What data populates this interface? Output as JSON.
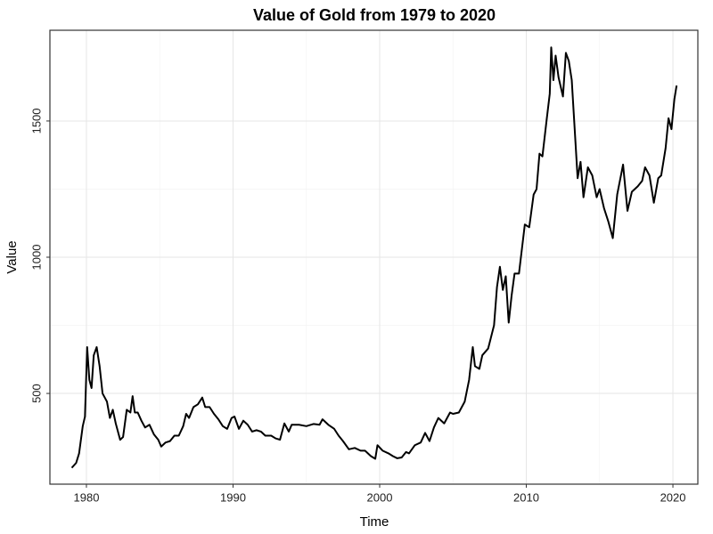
{
  "chart_data": {
    "type": "line",
    "title": "Value of Gold from 1979 to 2020",
    "x_label": "Time",
    "y_label": "Value",
    "xlim": [
      1977.51,
      2021.7
    ],
    "ylim": [
      167,
      1833
    ],
    "xticks": [
      1980,
      1990,
      2000,
      2010,
      2020
    ],
    "yticks": [
      500,
      1000,
      1500
    ],
    "minor_xticks": [
      1985,
      1995,
      2005,
      2015
    ],
    "minor_yticks": [
      750,
      1250
    ],
    "grid": true,
    "x": [
      1979.0,
      1979.3,
      1979.5,
      1979.75,
      1979.9,
      1980.05,
      1980.2,
      1980.35,
      1980.5,
      1980.7,
      1980.9,
      1981.1,
      1981.4,
      1981.6,
      1981.8,
      1982.0,
      1982.3,
      1982.5,
      1982.75,
      1983.0,
      1983.15,
      1983.3,
      1983.5,
      1983.75,
      1984.0,
      1984.3,
      1984.6,
      1984.9,
      1985.1,
      1985.4,
      1985.7,
      1986.0,
      1986.3,
      1986.6,
      1986.8,
      1987.0,
      1987.3,
      1987.6,
      1987.9,
      1988.1,
      1988.4,
      1988.7,
      1989.0,
      1989.3,
      1989.6,
      1989.9,
      1990.1,
      1990.4,
      1990.7,
      1991.0,
      1991.3,
      1991.6,
      1991.9,
      1992.2,
      1992.6,
      1992.9,
      1993.2,
      1993.5,
      1993.8,
      1994.0,
      1994.5,
      1995.0,
      1995.5,
      1995.9,
      1996.1,
      1996.5,
      1996.9,
      1997.2,
      1997.5,
      1997.9,
      1998.3,
      1998.7,
      1999.0,
      1999.4,
      1999.7,
      1999.85,
      2000.2,
      2000.6,
      2000.9,
      2001.2,
      2001.5,
      2001.8,
      2002.0,
      2002.4,
      2002.8,
      2003.1,
      2003.4,
      2003.7,
      2004.0,
      2004.4,
      2004.8,
      2005.0,
      2005.4,
      2005.8,
      2006.1,
      2006.35,
      2006.5,
      2006.8,
      2007.0,
      2007.4,
      2007.8,
      2008.0,
      2008.2,
      2008.4,
      2008.6,
      2008.8,
      2009.0,
      2009.2,
      2009.5,
      2009.9,
      2010.2,
      2010.5,
      2010.7,
      2010.9,
      2011.1,
      2011.4,
      2011.6,
      2011.7,
      2011.85,
      2012.0,
      2012.2,
      2012.5,
      2012.7,
      2012.9,
      2013.1,
      2013.3,
      2013.5,
      2013.7,
      2013.9,
      2014.2,
      2014.5,
      2014.8,
      2015.0,
      2015.3,
      2015.6,
      2015.9,
      2016.2,
      2016.6,
      2016.9,
      2017.2,
      2017.6,
      2017.9,
      2018.1,
      2018.4,
      2018.7,
      2019.0,
      2019.2,
      2019.5,
      2019.7,
      2019.9,
      2020.1,
      2020.25
    ],
    "series": [
      {
        "name": "Value",
        "color": "#000000",
        "values": [
          227,
          245,
          280,
          380,
          415,
          670,
          550,
          520,
          640,
          670,
          600,
          500,
          470,
          410,
          440,
          390,
          330,
          340,
          440,
          430,
          490,
          430,
          430,
          400,
          375,
          385,
          350,
          330,
          305,
          320,
          325,
          345,
          345,
          380,
          425,
          410,
          450,
          460,
          485,
          450,
          450,
          425,
          405,
          380,
          370,
          410,
          415,
          370,
          400,
          385,
          360,
          365,
          360,
          345,
          345,
          335,
          330,
          390,
          360,
          385,
          385,
          380,
          388,
          385,
          405,
          385,
          370,
          345,
          325,
          295,
          300,
          290,
          290,
          270,
          260,
          310,
          290,
          280,
          270,
          262,
          265,
          285,
          280,
          310,
          320,
          355,
          325,
          375,
          410,
          390,
          430,
          425,
          430,
          470,
          550,
          670,
          600,
          590,
          640,
          665,
          750,
          890,
          965,
          880,
          930,
          760,
          860,
          940,
          940,
          1120,
          1110,
          1230,
          1250,
          1380,
          1370,
          1510,
          1600,
          1770,
          1650,
          1740,
          1660,
          1590,
          1750,
          1720,
          1650,
          1470,
          1290,
          1350,
          1220,
          1330,
          1300,
          1220,
          1250,
          1180,
          1130,
          1070,
          1230,
          1340,
          1170,
          1240,
          1260,
          1280,
          1330,
          1300,
          1200,
          1290,
          1300,
          1400,
          1510,
          1470,
          1580,
          1630
        ]
      }
    ]
  }
}
